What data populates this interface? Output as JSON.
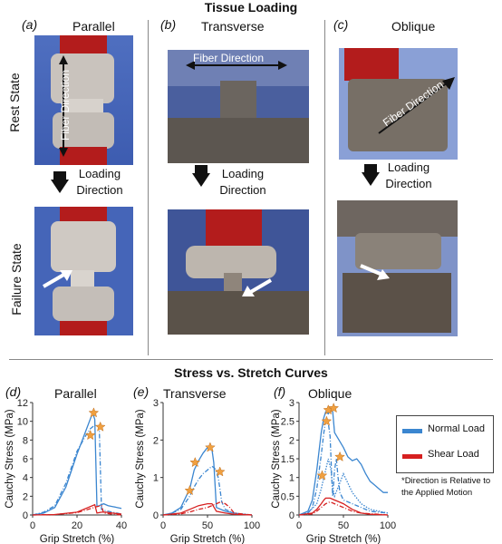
{
  "headings": {
    "top": "Tissue Loading",
    "bottom": "Stress vs. Stretch Curves"
  },
  "panels_top": [
    {
      "tag": "(a)",
      "title": "Parallel",
      "fiber": "Fiber Direction"
    },
    {
      "tag": "(b)",
      "title": "Transverse",
      "fiber": "Fiber Direction"
    },
    {
      "tag": "(c)",
      "title": "Oblique",
      "fiber": "Fiber Direction"
    }
  ],
  "row_labels": {
    "rest": "Rest State",
    "failure": "Failure State"
  },
  "loading": {
    "line1": "Loading",
    "line2": "Direction"
  },
  "legend": {
    "normal": "Normal Load",
    "shear": "Shear Load",
    "note_line1": "*Direction is Relative to",
    "note_line2": "the Applied Motion",
    "normal_color": "#3b86d0",
    "shear_color": "#d62020"
  },
  "marker_color": "#f0a040",
  "chart_data": [
    {
      "type": "line",
      "tag": "(d)",
      "title": "Parallel",
      "xlabel": "Grip Stretch (%)",
      "ylabel": "Cauchy Stress (MPa)",
      "xlim": [
        0,
        40
      ],
      "ylim": [
        0,
        12
      ],
      "xticks": [
        0,
        20,
        40
      ],
      "yticks": [
        0,
        2,
        4,
        6,
        8,
        10,
        12
      ],
      "series": [
        {
          "kind": "normal",
          "style": "solid",
          "x": [
            0,
            5,
            10,
            15,
            20,
            24,
            27,
            28,
            29,
            30,
            31,
            32,
            34,
            36,
            38,
            40
          ],
          "y": [
            0,
            0.2,
            0.8,
            3.0,
            6.5,
            9.0,
            10.9,
            10.2,
            0.9,
            1.0,
            1.1,
            1.2,
            1.0,
            0.9,
            0.8,
            0.7
          ]
        },
        {
          "kind": "normal",
          "style": "dashdot",
          "x": [
            0,
            5,
            10,
            15,
            20,
            24,
            26,
            28,
            30,
            31,
            32,
            34,
            36,
            38,
            40
          ],
          "y": [
            0,
            0.3,
            1.0,
            3.4,
            6.8,
            8.5,
            9.2,
            9.6,
            9.4,
            0.6,
            0.5,
            0.4,
            0.3,
            0.2,
            0.1
          ]
        },
        {
          "kind": "shear",
          "style": "solid",
          "x": [
            0,
            10,
            20,
            25,
            28,
            29,
            31,
            33,
            36,
            40
          ],
          "y": [
            0,
            0.05,
            0.3,
            0.8,
            1.1,
            0.2,
            0.3,
            0.3,
            0.2,
            0.1
          ]
        },
        {
          "kind": "shear",
          "style": "dashdot",
          "x": [
            0,
            10,
            20,
            25,
            29,
            31,
            32,
            36,
            40
          ],
          "y": [
            0,
            0.05,
            0.25,
            0.6,
            0.9,
            1.0,
            0.2,
            0.1,
            0.0
          ]
        }
      ],
      "markers": [
        [
          26.0,
          8.5
        ],
        [
          27.5,
          10.9
        ],
        [
          30.5,
          9.4
        ]
      ]
    },
    {
      "type": "line",
      "tag": "(e)",
      "title": "Transverse",
      "xlabel": "Grip Stretch (%)",
      "ylabel": "Cauchy Stress (MPa)",
      "xlim": [
        0,
        100
      ],
      "ylim": [
        0,
        3
      ],
      "xticks": [
        0,
        50,
        100
      ],
      "yticks": [
        0,
        1,
        2,
        3
      ],
      "series": [
        {
          "kind": "normal",
          "style": "solid",
          "x": [
            0,
            10,
            20,
            30,
            35,
            40,
            45,
            50,
            55,
            57,
            60,
            70,
            80,
            90,
            100
          ],
          "y": [
            0,
            0.05,
            0.2,
            0.7,
            1.2,
            1.45,
            1.65,
            1.8,
            1.75,
            1.4,
            0.2,
            0.1,
            0.05,
            0.02,
            0.0
          ]
        },
        {
          "kind": "normal",
          "style": "dashdot",
          "x": [
            0,
            10,
            20,
            30,
            35,
            40,
            45,
            50,
            55,
            58,
            60,
            62,
            64,
            66,
            70,
            80,
            90,
            100
          ],
          "y": [
            0,
            0.05,
            0.15,
            0.5,
            0.75,
            0.95,
            1.1,
            1.2,
            1.3,
            1.25,
            1.15,
            1.0,
            0.7,
            0.35,
            0.15,
            0.05,
            0.02,
            0.0
          ]
        },
        {
          "kind": "shear",
          "style": "solid",
          "x": [
            0,
            20,
            30,
            40,
            50,
            55,
            60,
            70,
            80,
            100
          ],
          "y": [
            0,
            0.05,
            0.15,
            0.25,
            0.3,
            0.3,
            0.1,
            0.05,
            0.02,
            0.0
          ]
        },
        {
          "kind": "shear",
          "style": "dashdot",
          "x": [
            0,
            20,
            30,
            40,
            50,
            60,
            65,
            70,
            75,
            80,
            100
          ],
          "y": [
            0,
            0.03,
            0.08,
            0.15,
            0.2,
            0.3,
            0.35,
            0.3,
            0.2,
            0.05,
            0.0
          ]
        }
      ],
      "markers": [
        [
          30.0,
          0.65
        ],
        [
          36.0,
          1.4
        ],
        [
          53.0,
          1.8
        ],
        [
          64.0,
          1.15
        ]
      ]
    },
    {
      "type": "line",
      "tag": "(f)",
      "title": "Oblique",
      "xlabel": "Grip Stretch (%)",
      "ylabel": "Cauchy Stress (MPa)",
      "xlim": [
        0,
        100
      ],
      "ylim": [
        0,
        3
      ],
      "xticks": [
        0,
        50,
        100
      ],
      "yticks": [
        0,
        0.5,
        1,
        1.5,
        2,
        2.5,
        3
      ],
      "series": [
        {
          "kind": "normal",
          "style": "solid",
          "x": [
            0,
            10,
            15,
            20,
            25,
            28,
            30,
            33,
            36,
            38,
            40,
            45,
            50,
            55,
            60,
            65,
            70,
            75,
            80,
            85,
            90,
            95,
            100
          ],
          "y": [
            0,
            0.1,
            0.4,
            1.2,
            2.2,
            2.6,
            2.75,
            2.7,
            2.85,
            2.75,
            2.2,
            2.0,
            1.8,
            1.55,
            1.45,
            1.5,
            1.35,
            1.1,
            0.9,
            0.8,
            0.7,
            0.6,
            0.6
          ]
        },
        {
          "kind": "normal",
          "style": "dashdot",
          "x": [
            0,
            10,
            15,
            20,
            25,
            28,
            30,
            33,
            35,
            37,
            38,
            40,
            42,
            44,
            46,
            50,
            60,
            70,
            80,
            100
          ],
          "y": [
            0,
            0.05,
            0.2,
            0.7,
            1.6,
            2.2,
            2.5,
            2.45,
            2.1,
            0.9,
            0.5,
            1.2,
            1.5,
            1.0,
            0.6,
            0.4,
            0.3,
            0.2,
            0.1,
            0.05
          ]
        },
        {
          "kind": "normal",
          "style": "dotted",
          "x": [
            0,
            10,
            20,
            25,
            28,
            30,
            33,
            36,
            38,
            40,
            45,
            50,
            60,
            70,
            80,
            100
          ],
          "y": [
            0,
            0.05,
            0.3,
            0.7,
            1.0,
            1.2,
            1.5,
            1.2,
            0.7,
            0.5,
            0.8,
            1.1,
            0.6,
            0.3,
            0.15,
            0.05
          ]
        },
        {
          "kind": "shear",
          "style": "solid",
          "x": [
            0,
            15,
            20,
            25,
            28,
            30,
            35,
            40,
            45,
            50,
            60,
            70,
            80,
            100
          ],
          "y": [
            0,
            0.05,
            0.15,
            0.3,
            0.4,
            0.45,
            0.45,
            0.4,
            0.35,
            0.3,
            0.15,
            0.05,
            0.02,
            0.0
          ]
        },
        {
          "kind": "shear",
          "style": "dashdot",
          "x": [
            0,
            15,
            20,
            25,
            30,
            35,
            40,
            45,
            50,
            60,
            70,
            100
          ],
          "y": [
            0,
            0.03,
            0.1,
            0.2,
            0.3,
            0.35,
            0.3,
            0.25,
            0.2,
            0.1,
            0.05,
            0.0
          ]
        }
      ],
      "markers": [
        [
          26.0,
          1.05
        ],
        [
          31.0,
          2.5
        ],
        [
          33.0,
          2.8
        ],
        [
          39.0,
          2.85
        ],
        [
          46.0,
          1.55
        ]
      ]
    }
  ]
}
